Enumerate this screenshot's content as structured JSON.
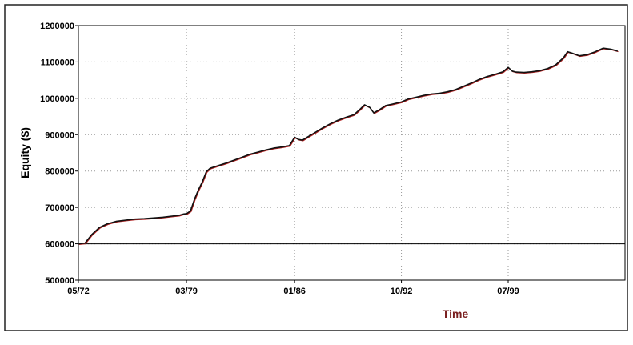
{
  "chart_data": {
    "type": "line",
    "title": "",
    "xlabel": "Time",
    "ylabel": "Equity ($)",
    "ylim": [
      500000,
      1200000
    ],
    "y_ticks": [
      500000,
      600000,
      700000,
      800000,
      900000,
      1000000,
      1100000,
      1200000
    ],
    "y_tick_labels": [
      "500000",
      "600000",
      "700000",
      "800000",
      "900000",
      "1000000",
      "1100000",
      "1200000"
    ],
    "x_ticks": [
      "05/72",
      "03/79",
      "01/86",
      "10/92",
      "07/99"
    ],
    "x_range": [
      "05/72",
      "06/06"
    ],
    "grid": true,
    "grid_style": "dotted",
    "reference_line_y": 600000,
    "legend": "none",
    "colors": {
      "line": "#111111",
      "line_shadow": "#b02020",
      "grid": "#999999",
      "axis_title_x": "#7a1f1f"
    },
    "series": [
      {
        "x": [
          "05/72",
          "10/72",
          "03/73",
          "09/73",
          "03/74",
          "10/74",
          "05/75",
          "12/75",
          "07/76",
          "02/77",
          "09/77",
          "04/78",
          "09/78",
          "01/79",
          "03/79",
          "06/79",
          "09/79",
          "12/79",
          "03/80",
          "06/80",
          "09/80",
          "03/81",
          "09/81",
          "03/82",
          "09/82",
          "03/83",
          "09/83",
          "03/84",
          "09/84",
          "03/85",
          "09/85",
          "01/86",
          "04/86",
          "07/86",
          "10/86",
          "04/87",
          "10/87",
          "04/88",
          "10/88",
          "04/89",
          "10/89",
          "02/90",
          "06/90",
          "10/90",
          "01/91",
          "05/91",
          "10/91",
          "03/92",
          "10/92",
          "03/93",
          "09/93",
          "03/94",
          "09/94",
          "03/95",
          "09/95",
          "03/96",
          "09/96",
          "03/97",
          "09/97",
          "03/98",
          "09/98",
          "03/99",
          "07/99",
          "10/99",
          "01/00",
          "07/00",
          "01/01",
          "07/01",
          "01/02",
          "07/02",
          "01/03",
          "04/03",
          "07/03",
          "01/04",
          "07/04",
          "01/05",
          "07/05",
          "01/06",
          "06/06"
        ],
        "values": [
          600000,
          602000,
          625000,
          645000,
          655000,
          662000,
          665000,
          668000,
          669000,
          671000,
          673000,
          676000,
          678000,
          682000,
          683000,
          690000,
          722000,
          748000,
          770000,
          798000,
          808000,
          815000,
          822000,
          830000,
          838000,
          846000,
          852000,
          858000,
          863000,
          866000,
          870000,
          893000,
          887000,
          885000,
          892000,
          905000,
          918000,
          930000,
          940000,
          948000,
          955000,
          968000,
          982000,
          975000,
          960000,
          968000,
          980000,
          984000,
          990000,
          998000,
          1003000,
          1008000,
          1012000,
          1014000,
          1018000,
          1024000,
          1033000,
          1042000,
          1052000,
          1060000,
          1066000,
          1073000,
          1085000,
          1075000,
          1072000,
          1071000,
          1073000,
          1076000,
          1082000,
          1092000,
          1112000,
          1128000,
          1125000,
          1117000,
          1120000,
          1128000,
          1138000,
          1135000,
          1130000
        ]
      }
    ]
  }
}
